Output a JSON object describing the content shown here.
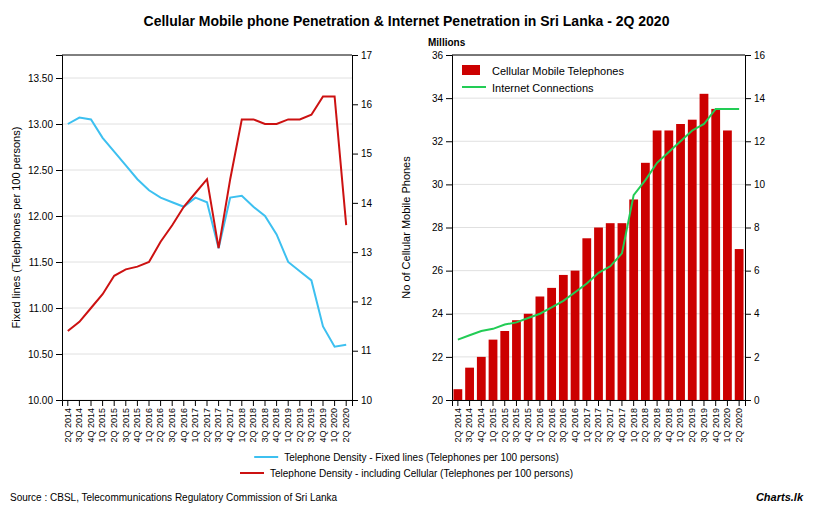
{
  "chart_data": [
    {
      "type": "line",
      "title": "Cellular Mobile phone Penetration & Internet Penetration in Sri Lanka - 2Q 2020",
      "annotations": [
        "Source : CBSL, Telecommunications Regulatory Commission of Sri Lanka",
        "Charts.lk"
      ],
      "categories": [
        "2Q 2014",
        "3Q 2014",
        "4Q 2014",
        "1Q 2015",
        "2Q 2015",
        "3Q 2015",
        "4Q 2015",
        "1Q 2016",
        "2Q 2016",
        "3Q 2016",
        "4Q 2016",
        "1Q 2017",
        "2Q 2017",
        "3Q 2017",
        "4Q 2017",
        "1Q 2018",
        "2Q 2018",
        "3Q 2018",
        "4Q 2018",
        "1Q 2019",
        "2Q 2019",
        "3Q 2019",
        "4Q 2019",
        "1Q 2020",
        "2Q 2020"
      ],
      "series": [
        {
          "name": "Telephone Density - Fixed lines (Telephones per 100 persons)",
          "color": "#3dc0f0",
          "values": [
            13.0,
            13.07,
            13.05,
            12.85,
            12.7,
            12.55,
            12.4,
            12.28,
            12.2,
            12.15,
            12.1,
            12.2,
            12.15,
            11.65,
            12.2,
            12.22,
            12.1,
            12.0,
            11.8,
            11.5,
            11.4,
            11.3,
            10.8,
            10.58,
            10.6
          ]
        },
        {
          "name": "Telephone Density - including Cellular (Telephones per 100 persons)",
          "color": "#cc1111",
          "values": [
            10.75,
            10.85,
            11.0,
            11.15,
            11.35,
            11.42,
            11.45,
            11.5,
            11.72,
            11.9,
            12.1,
            12.25,
            12.4,
            11.65,
            12.4,
            13.05,
            13.05,
            13.0,
            13.0,
            13.05,
            13.05,
            13.1,
            13.3,
            13.3,
            11.9
          ]
        }
      ],
      "y_label": "Fixed lines (Telephones per 100 persons)",
      "ylim": [
        10.0,
        13.75
      ],
      "yticks": [
        {
          "value": 10.0,
          "label": "10.00"
        },
        {
          "value": 10.5,
          "label": "10.50"
        },
        {
          "value": 11.0,
          "label": "11.00"
        },
        {
          "value": 11.5,
          "label": "11.50"
        },
        {
          "value": 12.0,
          "label": "12.00"
        },
        {
          "value": 12.5,
          "label": "12.50"
        },
        {
          "value": 13.0,
          "label": "13.00"
        },
        {
          "value": 13.5,
          "label": "13.50"
        }
      ],
      "y2lim": [
        10,
        17
      ],
      "y2ticks": [
        10,
        11,
        12,
        13,
        14,
        15,
        16,
        17
      ],
      "grid": true,
      "legend": "bottom"
    },
    {
      "type": "bar",
      "annotations": [
        "Millions"
      ],
      "categories": [
        "2Q 2014",
        "3Q 2014",
        "4Q 2014",
        "1Q 2015",
        "2Q 2015",
        "3Q 2015",
        "4Q 2015",
        "1Q 2016",
        "2Q 2016",
        "3Q 2016",
        "4Q 2016",
        "1Q 2017",
        "2Q 2017",
        "3Q 2017",
        "4Q 2017",
        "1Q 2018",
        "2Q 2018",
        "3Q 2018",
        "4Q 2018",
        "1Q 2019",
        "2Q 2019",
        "3Q 2019",
        "4Q 2019",
        "1Q 2020",
        "2Q 2020"
      ],
      "series": [
        {
          "name": "Cellular Mobile Telephones",
          "type": "bar",
          "color": "#cc0000",
          "values": [
            20.5,
            21.5,
            22.0,
            22.8,
            23.2,
            23.7,
            24.0,
            24.8,
            25.2,
            25.8,
            26.0,
            27.5,
            28.0,
            28.2,
            28.2,
            29.3,
            31.0,
            32.5,
            32.5,
            32.8,
            33.0,
            34.2,
            33.5,
            32.5,
            27.0
          ]
        },
        {
          "name": "Internet Connections",
          "type": "line",
          "color": "#22cc55",
          "axis": "y2",
          "values": [
            2.8,
            3.0,
            3.2,
            3.3,
            3.5,
            3.6,
            3.8,
            4.0,
            4.3,
            4.6,
            5.0,
            5.4,
            5.9,
            6.2,
            6.8,
            9.5,
            10.2,
            11.0,
            11.5,
            12.0,
            12.5,
            12.8,
            13.5,
            13.5,
            13.5
          ]
        }
      ],
      "y_label": "No of Cellular Mobile Phones",
      "ylim": [
        20,
        36
      ],
      "yticks": [
        20,
        22,
        24,
        26,
        28,
        30,
        32,
        34,
        36
      ],
      "y2lim": [
        0,
        16
      ],
      "y2ticks": [
        0,
        2,
        4,
        6,
        8,
        10,
        12,
        14,
        16
      ],
      "grid": true,
      "legend": "upper left"
    }
  ]
}
